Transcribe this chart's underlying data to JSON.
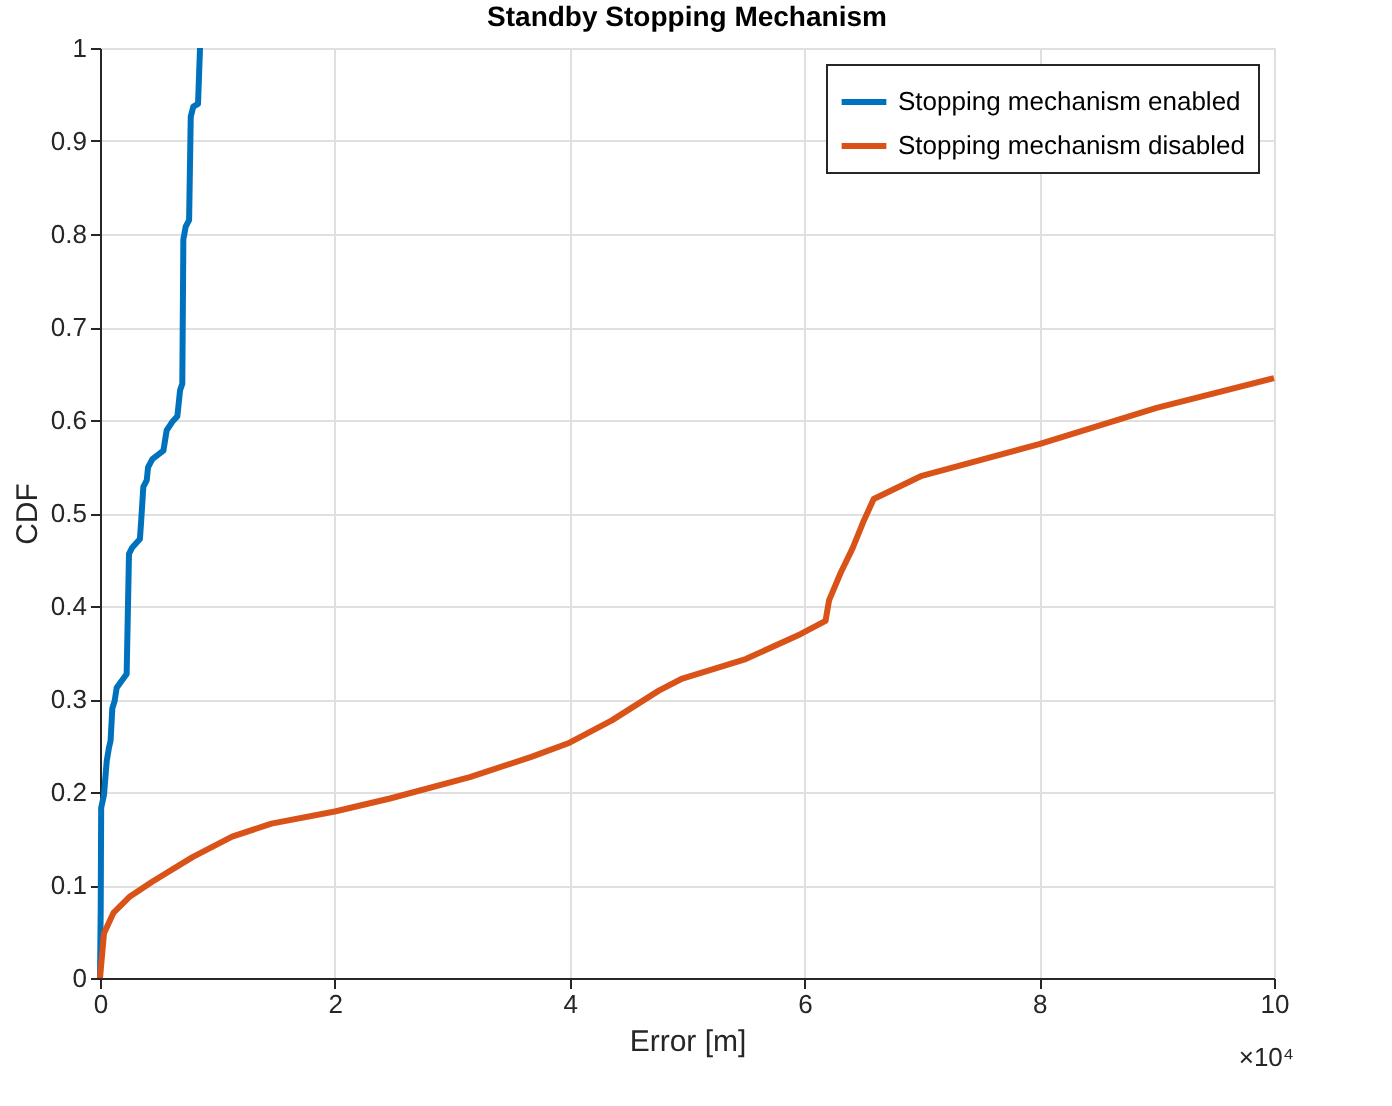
{
  "chart_data": {
    "type": "line",
    "title": "Standby Stopping Mechanism",
    "xlabel": "Error [m]",
    "ylabel": "CDF",
    "xlim": [
      0,
      10
    ],
    "xticks": [
      0,
      2,
      4,
      6,
      8,
      10
    ],
    "ylim": [
      0,
      1
    ],
    "yticks": [
      0,
      0.1,
      0.2,
      0.3,
      0.4,
      0.5,
      0.6,
      0.7,
      0.8,
      0.9,
      1
    ],
    "grid": true,
    "legend": "top right",
    "marker": "none",
    "line_style": "solid",
    "annotations": [
      "×10⁴"
    ],
    "series": [
      {
        "name": "Stopping mechanism enabled",
        "color": "#0072bd",
        "x": [
          0,
          0.006,
          0.01,
          0.034,
          0.057,
          0.077,
          0.09,
          0.105,
          0.125,
          0.142,
          0.176,
          0.227,
          0.247,
          0.275,
          0.34,
          0.352,
          0.369,
          0.398,
          0.409,
          0.446,
          0.54,
          0.568,
          0.616,
          0.659,
          0.682,
          0.701,
          0.71,
          0.73,
          0.759,
          0.773,
          0.795,
          0.835,
          0.852
        ],
        "values": [
          0,
          0.075,
          0.183,
          0.197,
          0.233,
          0.248,
          0.255,
          0.29,
          0.298,
          0.312,
          0.318,
          0.327,
          0.456,
          0.463,
          0.472,
          0.494,
          0.528,
          0.535,
          0.549,
          0.558,
          0.567,
          0.589,
          0.598,
          0.604,
          0.632,
          0.639,
          0.794,
          0.808,
          0.815,
          0.926,
          0.937,
          0.94,
          1.0
        ]
      },
      {
        "name": "Stopping mechanism disabled",
        "color": "#d95319",
        "x": [
          0,
          0.034,
          0.114,
          0.249,
          0.451,
          0.788,
          1.125,
          1.46,
          2.0,
          2.47,
          3.15,
          3.68,
          4.0,
          4.36,
          4.76,
          4.96,
          5.5,
          5.97,
          6.18,
          6.21,
          6.31,
          6.41,
          6.5,
          6.59,
          7,
          8,
          9,
          10
        ],
        "values": [
          0,
          0.048,
          0.07,
          0.087,
          0.104,
          0.13,
          0.152,
          0.166,
          0.179,
          0.193,
          0.216,
          0.238,
          0.253,
          0.277,
          0.309,
          0.322,
          0.343,
          0.37,
          0.384,
          0.406,
          0.436,
          0.462,
          0.49,
          0.515,
          0.54,
          0.574,
          0.613,
          0.645
        ]
      }
    ]
  }
}
